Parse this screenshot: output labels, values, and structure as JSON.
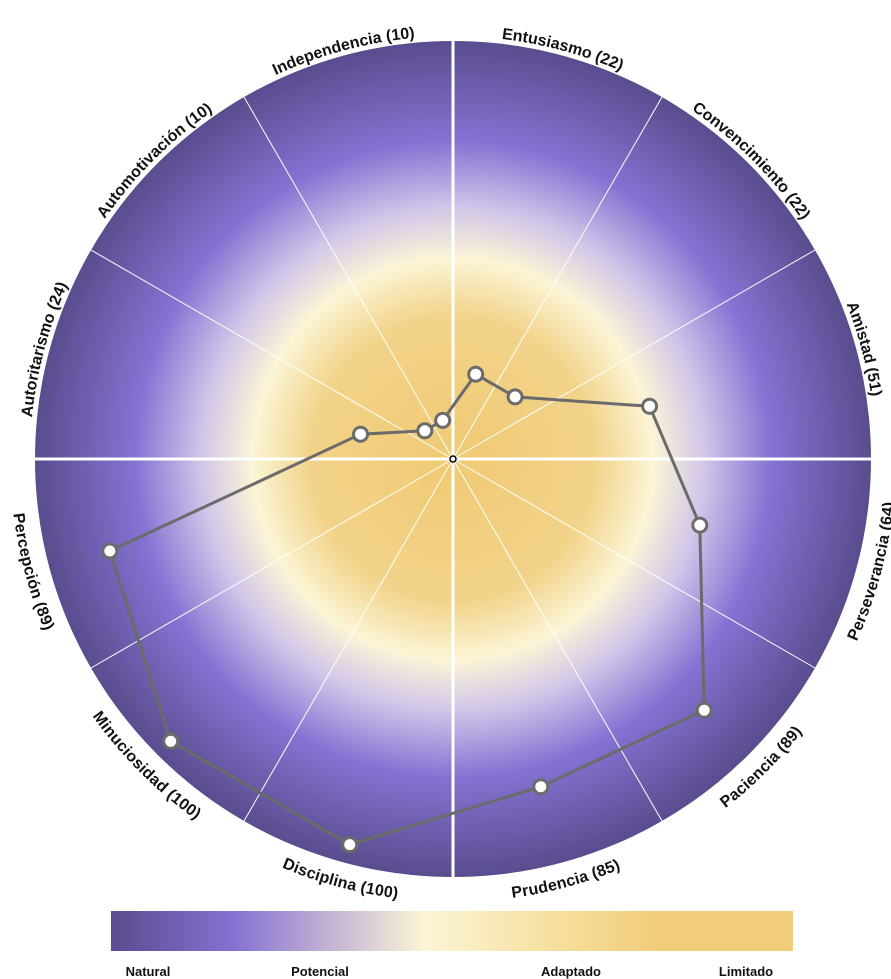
{
  "chart_data": {
    "type": "radar",
    "categories": [
      {
        "label": "Entusiasmo (22)",
        "value": 22
      },
      {
        "label": "Convencimiento (22)",
        "value": 22
      },
      {
        "label": "Amistad (51)",
        "value": 51
      },
      {
        "label": "Perseverancia (64)",
        "value": 64
      },
      {
        "label": "Paciencia (89)",
        "value": 89
      },
      {
        "label": "Prudencia (85)",
        "value": 85
      },
      {
        "label": "Disciplina (100)",
        "value": 100
      },
      {
        "label": "Minuciosidad (100)",
        "value": 100
      },
      {
        "label": "Percepción (89)",
        "value": 89
      },
      {
        "label": "Autoritarismo (24)",
        "value": 24
      },
      {
        "label": "Automotivación (10)",
        "value": 10
      },
      {
        "label": "Independencia (10)",
        "value": 10
      }
    ],
    "range": [
      0,
      100
    ],
    "legend": {
      "position": "bottom",
      "labels": [
        "Natural",
        "Potencial",
        "Adaptado",
        "Limitado"
      ]
    },
    "colors": {
      "gold": "#f1cd79",
      "cream": "#fbf5d6",
      "purple": "#8771d2",
      "purple_dark": "#5a4b8f",
      "line": "#6b6b6b"
    }
  }
}
